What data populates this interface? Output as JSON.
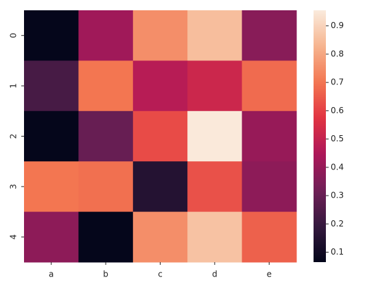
{
  "chart_data": {
    "type": "heatmap",
    "rows": [
      "0",
      "1",
      "2",
      "3",
      "4"
    ],
    "columns": [
      "a",
      "b",
      "c",
      "d",
      "e"
    ],
    "values": [
      [
        0.07,
        0.42,
        0.75,
        0.85,
        0.37
      ],
      [
        0.23,
        0.7,
        0.47,
        0.52,
        0.68
      ],
      [
        0.07,
        0.3,
        0.62,
        0.95,
        0.4
      ],
      [
        0.7,
        0.69,
        0.15,
        0.63,
        0.38
      ],
      [
        0.38,
        0.07,
        0.75,
        0.86,
        0.66
      ]
    ],
    "colormap": "rocket",
    "clim": [
      0.065,
      0.955
    ],
    "cticks": [
      0.1,
      0.2,
      0.3,
      0.4,
      0.5,
      0.6,
      0.7,
      0.8,
      0.9
    ]
  }
}
